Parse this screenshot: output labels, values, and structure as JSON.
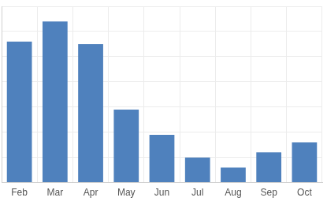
{
  "chart_data": {
    "type": "bar",
    "categories": [
      "Feb",
      "Mar",
      "Apr",
      "May",
      "Jun",
      "Jul",
      "Aug",
      "Sep",
      "Oct"
    ],
    "values": [
      5.6,
      6.4,
      5.5,
      2.9,
      1.9,
      1.0,
      0.6,
      1.2,
      1.6
    ],
    "color": "#4f81bd",
    "ylim": [
      0,
      7
    ],
    "yticks": [
      0,
      1,
      2,
      3,
      4,
      5,
      6,
      7
    ],
    "grid": true,
    "tick_labels": "x"
  }
}
